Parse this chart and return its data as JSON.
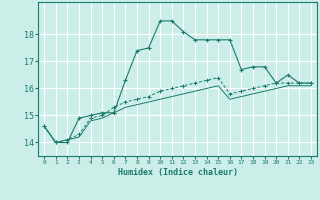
{
  "xlabel": "Humidex (Indice chaleur)",
  "ylabel": "",
  "background_color": "#cceee8",
  "grid_color": "#ffffff",
  "line_color": "#1a7a6e",
  "xlim": [
    -0.5,
    23.5
  ],
  "ylim": [
    13.5,
    19.2
  ],
  "x_ticks": [
    0,
    1,
    2,
    3,
    4,
    5,
    6,
    7,
    8,
    9,
    10,
    11,
    12,
    13,
    14,
    15,
    16,
    17,
    18,
    19,
    20,
    21,
    22,
    23
  ],
  "y_ticks": [
    14,
    15,
    16,
    17,
    18
  ],
  "series1_x": [
    0,
    1,
    2,
    3,
    4,
    5,
    6,
    7,
    8,
    9,
    10,
    11,
    12,
    13,
    14,
    15,
    16,
    17,
    18,
    19,
    20,
    21,
    22,
    23
  ],
  "series1_y": [
    14.6,
    14.0,
    14.0,
    14.9,
    15.0,
    15.1,
    15.1,
    16.3,
    17.4,
    17.5,
    18.5,
    18.5,
    18.1,
    17.8,
    17.8,
    17.8,
    17.8,
    16.7,
    16.8,
    16.8,
    16.2,
    16.5,
    16.2,
    16.2
  ],
  "series2_x": [
    0,
    1,
    2,
    3,
    4,
    5,
    6,
    7,
    8,
    9,
    10,
    11,
    12,
    13,
    14,
    15,
    16,
    17,
    18,
    19,
    20,
    21,
    22,
    23
  ],
  "series2_y": [
    14.6,
    14.0,
    14.1,
    14.3,
    14.9,
    15.0,
    15.3,
    15.5,
    15.6,
    15.7,
    15.9,
    16.0,
    16.1,
    16.2,
    16.3,
    16.4,
    15.8,
    15.9,
    16.0,
    16.1,
    16.2,
    16.2,
    16.2,
    16.2
  ],
  "series3_x": [
    0,
    1,
    2,
    3,
    4,
    5,
    6,
    7,
    8,
    9,
    10,
    11,
    12,
    13,
    14,
    15,
    16,
    17,
    18,
    19,
    20,
    21,
    22,
    23
  ],
  "series3_y": [
    14.6,
    14.0,
    14.1,
    14.2,
    14.8,
    14.9,
    15.1,
    15.3,
    15.4,
    15.5,
    15.6,
    15.7,
    15.8,
    15.9,
    16.0,
    16.1,
    15.6,
    15.7,
    15.8,
    15.9,
    16.0,
    16.1,
    16.1,
    16.1
  ]
}
